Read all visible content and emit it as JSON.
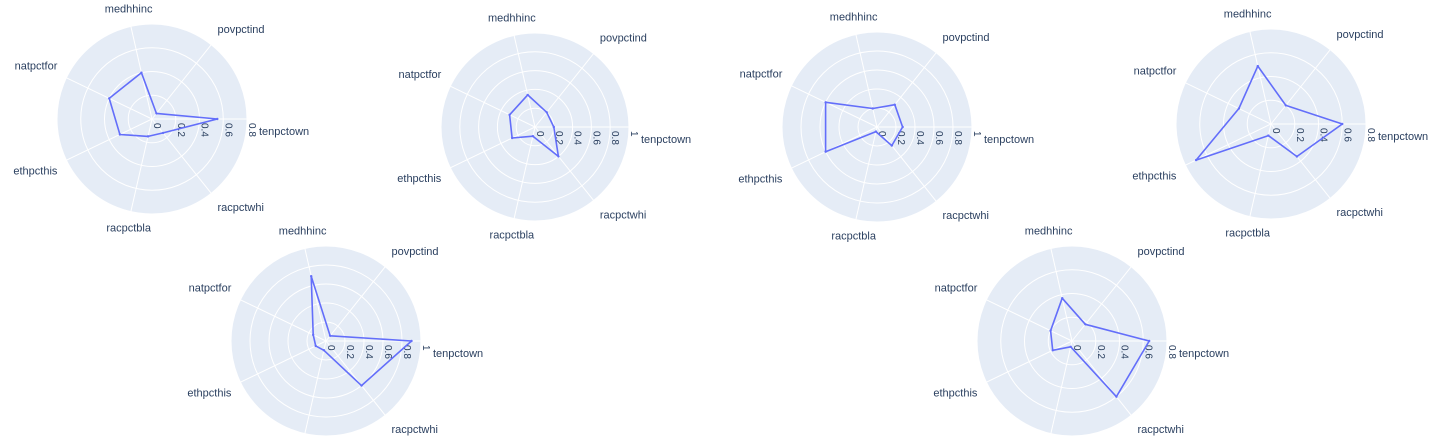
{
  "colors": {
    "background": "#e5ecf6",
    "grid": "#ffffff",
    "line": "#636efa",
    "text": "#2a3f5f"
  },
  "chart_data": [
    {
      "type": "radar",
      "theta": [
        "tenpctown",
        "povpctind",
        "medhhinc",
        "natpctfor",
        "ethpcthis",
        "racpctbla",
        "racpctwhi"
      ],
      "r": [
        0.55,
        0.06,
        0.4,
        0.4,
        0.3,
        0.15,
        0.15
      ],
      "radial_ticks": [
        "0",
        "0.2",
        "0.4",
        "0.6",
        "0.8"
      ],
      "radial_range": [
        0,
        0.8
      ]
    },
    {
      "type": "radar",
      "theta": [
        "tenpctown",
        "povpctind",
        "medhhinc",
        "natpctfor",
        "ethpcthis",
        "racpctbla",
        "racpctwhi"
      ],
      "r": [
        0.2,
        0.2,
        0.35,
        0.3,
        0.27,
        0.1,
        0.4
      ],
      "radial_ticks": [
        "0",
        "0.2",
        "0.4",
        "0.6",
        "0.8",
        "1"
      ],
      "radial_range": [
        0,
        1
      ]
    },
    {
      "type": "radar",
      "theta": [
        "tenpctown",
        "povpctind",
        "medhhinc",
        "natpctfor",
        "ethpcthis",
        "racpctbla",
        "racpctwhi"
      ],
      "r": [
        0.27,
        0.3,
        0.2,
        0.6,
        0.6,
        0.05,
        0.25
      ],
      "radial_ticks": [
        "0",
        "0.2",
        "0.4",
        "0.6",
        "0.8",
        "1"
      ],
      "radial_range": [
        0,
        1
      ]
    },
    {
      "type": "radar",
      "theta": [
        "tenpctown",
        "povpctind",
        "medhhinc",
        "natpctfor",
        "ethpcthis",
        "racpctbla",
        "racpctwhi"
      ],
      "r": [
        0.6,
        0.2,
        0.5,
        0.3,
        0.7,
        0.1,
        0.35
      ],
      "radial_ticks": [
        "0",
        "0.2",
        "0.4",
        "0.6",
        "0.8"
      ],
      "radial_range": [
        0,
        0.8
      ]
    },
    {
      "type": "radar",
      "theta": [
        "tenpctown",
        "povpctind",
        "medhhinc",
        "natpctfor",
        "ethpcthis",
        "racpctbla",
        "racpctwhi"
      ],
      "r": [
        0.9,
        0.07,
        0.7,
        0.15,
        0.12,
        0.1,
        0.6
      ],
      "radial_ticks": [
        "0",
        "0.2",
        "0.4",
        "0.6",
        "0.8",
        "1"
      ],
      "radial_range": [
        0,
        1
      ]
    },
    {
      "type": "radar",
      "theta": [
        "tenpctown",
        "povpctind",
        "medhhinc",
        "natpctfor",
        "ethpcthis",
        "racpctbla",
        "racpctwhi"
      ],
      "r": [
        0.65,
        0.18,
        0.37,
        0.2,
        0.18,
        0.05,
        0.6
      ],
      "radial_ticks": [
        "0",
        "0.2",
        "0.4",
        "0.6",
        "0.8"
      ],
      "radial_range": [
        0,
        0.8
      ]
    }
  ]
}
